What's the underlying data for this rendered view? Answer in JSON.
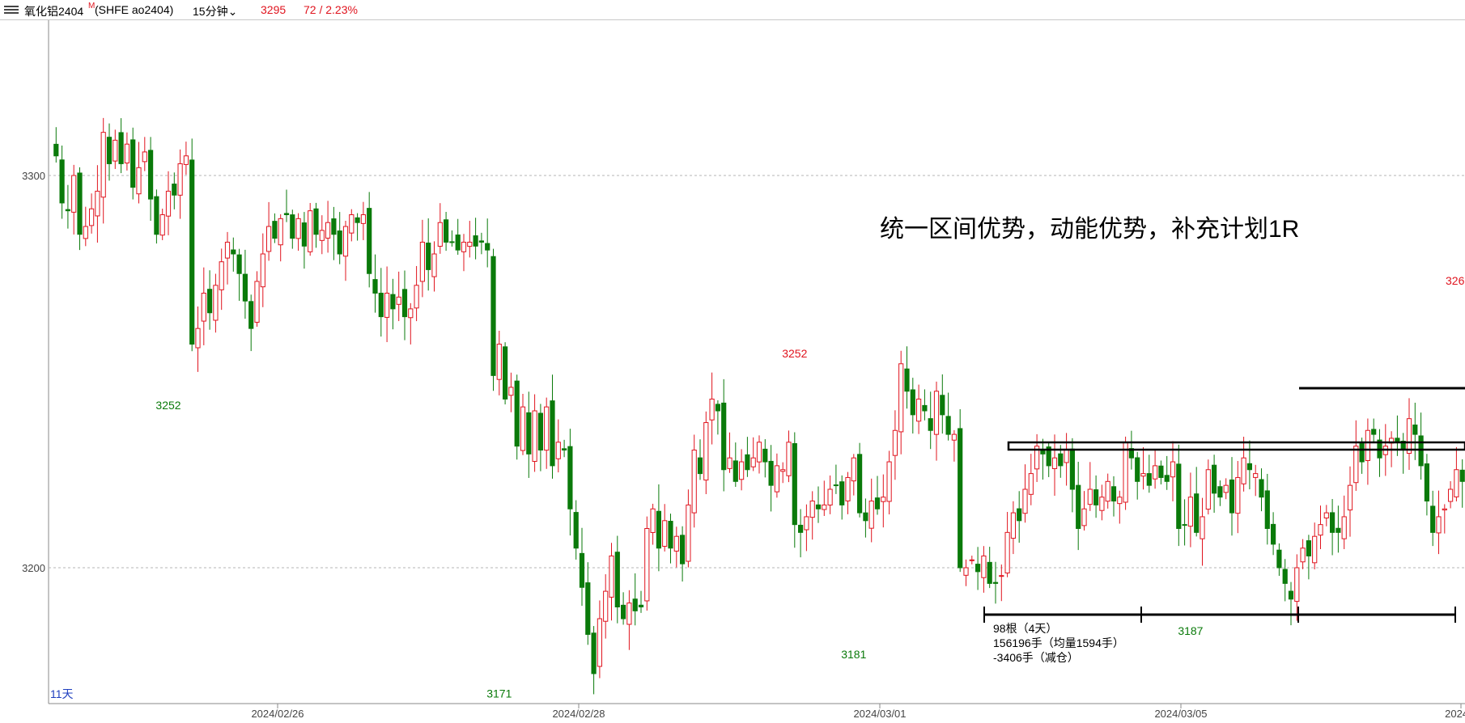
{
  "header": {
    "instrument": "氧化铝2404",
    "badge": "M",
    "code": "(SHFE ao2404)",
    "period": "15分钟",
    "price": "3295",
    "change": "72 / 2.23%"
  },
  "annotation": {
    "title": "统一区间优势，动能优势，补充计划1R",
    "stats": [
      "98根（4天）",
      "156196手（均量1594手）",
      "-3406手（减仓）"
    ]
  },
  "range_label": "11天",
  "colors": {
    "up": "#e0141e",
    "down": "#0a7a0a",
    "grid": "#b4b4b4"
  },
  "chart_data": {
    "type": "candlestick",
    "y_ticks": [
      3200,
      3300
    ],
    "x_tick_labels": [
      "2024/02/26",
      "2024/02/28",
      "2024/03/01",
      "2024/03/05",
      "2024/0"
    ],
    "price_labels": [
      {
        "text": "3252",
        "kind": "low"
      },
      {
        "text": "3171",
        "kind": "low"
      },
      {
        "text": "3252",
        "kind": "high"
      },
      {
        "text": "3181",
        "kind": "low"
      },
      {
        "text": "3187",
        "kind": "low"
      },
      {
        "text": "326",
        "kind": "high"
      }
    ],
    "segments": [
      [
        0,
        3308,
        3305,
        3293,
        3291,
        3300,
        3285,
        3287
      ],
      [
        8,
        3296,
        3311,
        3303,
        3309,
        3303
      ],
      [
        13,
        3308,
        3297,
        3302,
        3306,
        3294,
        3285,
        3290,
        3296,
        3295,
        3303,
        3306,
        3302
      ],
      [
        23,
        3305,
        3257,
        3261,
        3270,
        3265,
        3272,
        3278,
        3283,
        3280
      ],
      [
        32,
        3275,
        3268,
        3261,
        3273,
        3280,
        3287,
        3284,
        3289,
        3290
      ],
      [
        41,
        3284,
        3289,
        3282,
        3291,
        3285,
        3286,
        3288,
        3285,
        3280,
        3287,
        3290,
        3288
      ],
      [
        53,
        3290,
        3275,
        3270,
        3264,
        3270,
        3266,
        3269,
        3264,
        3266
      ],
      [
        62,
        3272,
        3283,
        3276,
        3280,
        3288,
        3283,
        3283,
        3281,
        3283,
        3283,
        3282,
        3283
      ],
      [
        74,
        3281,
        3249,
        3257,
        3243,
        3246,
        3231,
        3241,
        3229,
        3240,
        3230,
        3241,
        3226,
        3232
      ],
      [
        87,
        3230,
        3215,
        3205,
        3195,
        3183,
        3173,
        3187,
        3194,
        3203,
        3190,
        3187,
        3191,
        3189
      ],
      [
        100,
        3190,
        3210,
        3215,
        3205,
        3212,
        3205,
        3208,
        3201,
        3216,
        3230
      ],
      [
        110,
        3224,
        3237,
        3243,
        3240,
        3225,
        3228,
        3222,
        3227,
        3225,
        3228,
        3232,
        3227,
        3221,
        3226,
        3225,
        3232,
        3211
      ],
      [
        127,
        3209,
        3213,
        3217,
        3215,
        3216,
        3220,
        3221,
        3216,
        3223,
        3228,
        3214,
        3212,
        3217,
        3215,
        3218,
        3227,
        3235,
        3252,
        3245,
        3239,
        3243
      ],
      [
        148,
        3240,
        3235,
        3245,
        3239,
        3234,
        3234,
        3200,
        3200,
        3202,
        3199,
        3203,
        3196
      ],
      [
        160,
        3196,
        3198,
        3209,
        3214,
        3212,
        3220,
        3224,
        3231,
        3229,
        3226,
        3228,
        3226,
        3230
      ],
      [
        173,
        3220,
        3210,
        3215,
        3220,
        3216,
        3218,
        3222,
        3217,
        3218,
        3232,
        3228,
        3222,
        3224,
        3221,
        3226,
        3223,
        3222
      ],
      [
        190,
        3227,
        3210,
        3211,
        3218,
        3209,
        3213,
        3225,
        3219,
        3218,
        3221,
        3214,
        3223,
        3228,
        3225
      ],
      [
        204,
        3224,
        3218,
        3210,
        3206,
        3200,
        3196,
        3192,
        3200,
        3205,
        3203,
        3208,
        3211,
        3214,
        3209
      ],
      [
        218,
        3209,
        3213,
        3221,
        3231,
        3227,
        3235,
        3234,
        3228,
        3231,
        3233,
        3232,
        3230,
        3238,
        3234,
        3226,
        3217,
        3209,
        3213,
        3215,
        3220,
        3225,
        3222,
        3220,
        3223
      ],
      [
        242,
        3223,
        3212,
        3209,
        3213,
        3215,
        3224,
        3226,
        3268
      ]
    ]
  }
}
